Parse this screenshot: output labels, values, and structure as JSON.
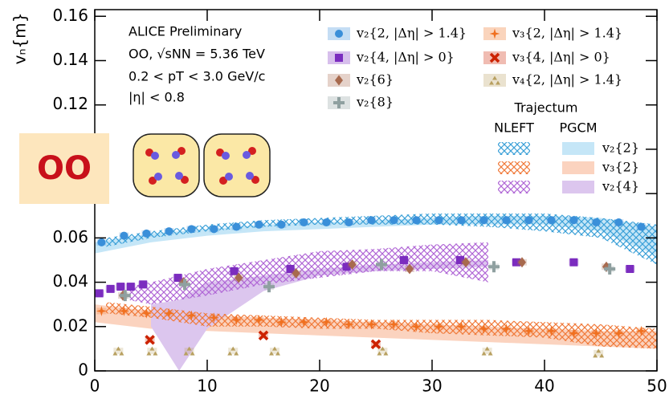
{
  "chart_data": {
    "type": "scatter",
    "ylabel": "vₙ{m}",
    "xlim": [
      0,
      50
    ],
    "xticks": [
      0,
      10,
      20,
      30,
      40,
      50
    ],
    "ylim": [
      0,
      0.163
    ],
    "yticks": [
      0,
      0.02,
      0.04,
      0.06,
      0.08,
      0.1,
      0.12,
      0.14,
      0.16
    ],
    "annotations": [
      "ALICE Preliminary",
      "OO, √sNN = 5.36 TeV",
      "0.2 < pT < 3.0 GeV/c",
      "|η| < 0.8"
    ],
    "badge": "OO",
    "series": [
      {
        "name": "v₂{2, |Δη| > 1.4}",
        "color": "#3a8fd9",
        "marker": "circle",
        "x": [
          0.6,
          2.6,
          4.6,
          6.6,
          8.6,
          10.6,
          12.6,
          14.6,
          16.6,
          18.6,
          20.6,
          22.6,
          24.6,
          26.6,
          28.6,
          30.6,
          32.6,
          34.6,
          36.6,
          38.6,
          40.6,
          42.6,
          44.6,
          46.6,
          48.6
        ],
        "values": [
          0.058,
          0.061,
          0.062,
          0.063,
          0.064,
          0.064,
          0.065,
          0.066,
          0.066,
          0.067,
          0.067,
          0.067,
          0.068,
          0.068,
          0.068,
          0.068,
          0.068,
          0.068,
          0.068,
          0.068,
          0.068,
          0.068,
          0.067,
          0.067,
          0.065
        ]
      },
      {
        "name": "v₂{4, |Δη| > 0}",
        "color": "#7b2cbf",
        "marker": "square",
        "x": [
          0.4,
          1.4,
          2.3,
          3.2,
          4.3,
          7.4,
          12.4,
          17.4,
          22.4,
          27.5,
          32.5,
          37.5,
          42.6,
          47.6
        ],
        "values": [
          0.035,
          0.037,
          0.038,
          0.038,
          0.039,
          0.042,
          0.045,
          0.046,
          0.047,
          0.05,
          0.05,
          0.049,
          0.049,
          0.046
        ]
      },
      {
        "name": "v₂{6}",
        "color": "#a86a4e",
        "marker": "diamond",
        "x": [
          2.5,
          7.9,
          12.8,
          17.9,
          22.9,
          28,
          33,
          38,
          45.5
        ],
        "values": [
          0.034,
          0.04,
          0.042,
          0.044,
          0.048,
          0.046,
          0.049,
          0.049,
          0.047
        ]
      },
      {
        "name": "v₂{8}",
        "color": "#8fa0a0",
        "marker": "cross",
        "x": [
          2.7,
          8,
          15.5,
          25.5,
          35.5,
          45.8
        ],
        "values": [
          0.034,
          0.039,
          0.038,
          0.048,
          0.047,
          0.046
        ]
      },
      {
        "name": "v₃{2, |Δη| > 1.4}",
        "color": "#f07020",
        "marker": "star",
        "x": [
          0.6,
          2.6,
          4.6,
          6.6,
          8.6,
          10.6,
          12.6,
          14.6,
          16.6,
          18.6,
          20.6,
          22.6,
          24.6,
          26.6,
          28.6,
          30.6,
          32.6,
          34.6,
          36.6,
          38.6,
          40.6,
          42.6,
          44.6,
          46.6,
          48.6
        ],
        "values": [
          0.027,
          0.027,
          0.026,
          0.026,
          0.025,
          0.024,
          0.023,
          0.023,
          0.022,
          0.022,
          0.022,
          0.021,
          0.021,
          0.021,
          0.02,
          0.02,
          0.02,
          0.019,
          0.019,
          0.018,
          0.018,
          0.017,
          0.017,
          0.017,
          0.018
        ]
      },
      {
        "name": "v₃{4, |Δη| > 0}",
        "color": "#cc2200",
        "marker": "x",
        "x": [
          4.9,
          15,
          25
        ],
        "values": [
          0.014,
          0.016,
          0.012
        ]
      },
      {
        "name": "v₄{2, |Δη| > 1.4}",
        "color": "#b8a060",
        "marker": "triangle",
        "x": [
          2.1,
          5.1,
          8.4,
          12.3,
          16,
          25.6,
          34.9,
          44.8
        ],
        "values": [
          0.009,
          0.009,
          0.009,
          0.009,
          0.009,
          0.009,
          0.009,
          0.008
        ]
      }
    ],
    "model_title": "Trajectum",
    "model_rows": [
      "v₂{2}",
      "v₃{2}",
      "v₂{4}"
    ],
    "models": [
      {
        "name": "NLEFT",
        "style": "hatched",
        "bands": [
          {
            "color": "#3ba0d8",
            "x": [
              1,
              5,
              10,
              15,
              20,
              25,
              30,
              35,
              40,
              45,
              50
            ],
            "lower": [
              0.056,
              0.06,
              0.063,
              0.065,
              0.066,
              0.066,
              0.066,
              0.065,
              0.063,
              0.06,
              0.048
            ],
            "upper": [
              0.06,
              0.063,
              0.066,
              0.068,
              0.069,
              0.07,
              0.071,
              0.071,
              0.071,
              0.069,
              0.066
            ]
          },
          {
            "color": "#f07a3a",
            "x": [
              1,
              5,
              10,
              15,
              20,
              25,
              30,
              35,
              40,
              45,
              50
            ],
            "lower": [
              0.026,
              0.024,
              0.02,
              0.02,
              0.019,
              0.019,
              0.017,
              0.016,
              0.015,
              0.011,
              0.01
            ],
            "upper": [
              0.031,
              0.029,
              0.026,
              0.025,
              0.024,
              0.023,
              0.023,
              0.023,
              0.022,
              0.021,
              0.019
            ]
          },
          {
            "color": "#b066d6",
            "x": [
              3,
              5,
              10,
              15,
              20,
              25,
              30,
              35
            ],
            "lower": [
              0.032,
              0.03,
              0.034,
              0.039,
              0.042,
              0.045,
              0.045,
              0.04
            ],
            "upper": [
              0.038,
              0.04,
              0.046,
              0.05,
              0.054,
              0.055,
              0.057,
              0.058
            ]
          }
        ]
      },
      {
        "name": "PGCM",
        "style": "solid",
        "bands": [
          {
            "color": "#c5e6f7",
            "x": [
              0,
              5,
              10,
              15,
              20,
              25,
              30,
              35,
              40,
              45,
              50
            ],
            "lower": [
              0.053,
              0.058,
              0.061,
              0.063,
              0.064,
              0.065,
              0.066,
              0.066,
              0.066,
              0.063,
              0.052
            ],
            "upper": [
              0.058,
              0.062,
              0.064,
              0.066,
              0.067,
              0.068,
              0.069,
              0.07,
              0.07,
              0.069,
              0.065
            ]
          },
          {
            "color": "#fbd3bf",
            "x": [
              0,
              5,
              10,
              15,
              20,
              25,
              30,
              35,
              40,
              45,
              50
            ],
            "lower": [
              0.022,
              0.019,
              0.018,
              0.017,
              0.016,
              0.015,
              0.014,
              0.013,
              0.012,
              0.011,
              0.01
            ],
            "upper": [
              0.03,
              0.027,
              0.025,
              0.024,
              0.023,
              0.022,
              0.021,
              0.02,
              0.019,
              0.018,
              0.018
            ]
          },
          {
            "color": "#dcc6ee",
            "x": [
              5,
              7.5,
              10,
              15,
              20,
              25,
              30,
              35
            ],
            "lower": [
              0.02,
              0,
              0.019,
              0.036,
              0.043,
              0.045,
              0.046,
              0.047
            ],
            "upper": [
              0.03,
              0.032,
              0.04,
              0.043,
              0.046,
              0.048,
              0.049,
              0.05
            ]
          }
        ]
      }
    ]
  }
}
